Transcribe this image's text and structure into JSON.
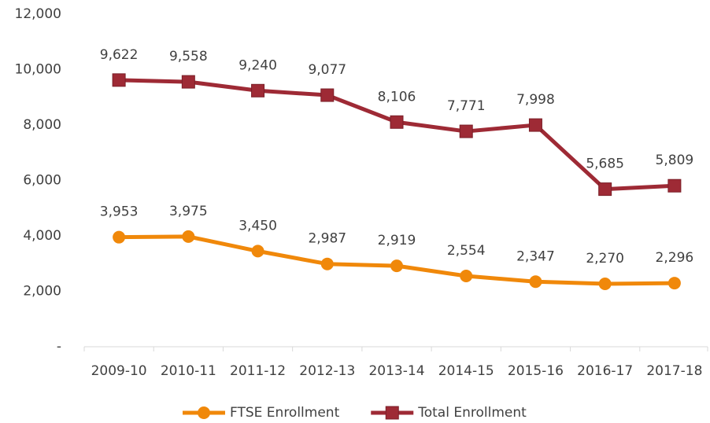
{
  "chart_data": {
    "type": "line",
    "categories": [
      "2009-10",
      "2010-11",
      "2011-12",
      "2012-13",
      "2013-14",
      "2014-15",
      "2015-16",
      "2016-17",
      "2017-18"
    ],
    "series": [
      {
        "name": "FTSE Enrollment",
        "color": "#f0880a",
        "marker": "circle",
        "values": [
          3953,
          3975,
          3450,
          2987,
          2919,
          2554,
          2347,
          2270,
          2296
        ],
        "value_labels": [
          "3,953",
          "3,975",
          "3,450",
          "2,987",
          "2,919",
          "2,554",
          "2,347",
          "2,270",
          "2,296"
        ]
      },
      {
        "name": "Total Enrollment",
        "color": "#9e2a35",
        "marker": "square",
        "values": [
          9622,
          9558,
          9240,
          9077,
          8106,
          7771,
          7998,
          5685,
          5809
        ],
        "value_labels": [
          "9,622",
          "9,558",
          "9,240",
          "9,077",
          "8,106",
          "7,771",
          "7,998",
          "5,685",
          "5,809"
        ]
      }
    ],
    "ylim": [
      0,
      12000
    ],
    "yticks": [
      {
        "value": 0,
        "label": "-"
      },
      {
        "value": 2000,
        "label": "2,000"
      },
      {
        "value": 4000,
        "label": "4,000"
      },
      {
        "value": 6000,
        "label": "6,000"
      },
      {
        "value": 8000,
        "label": "8,000"
      },
      {
        "value": 10000,
        "label": "10,000"
      },
      {
        "value": 12000,
        "label": "12,000"
      }
    ],
    "grid": false,
    "legend": "bottom"
  }
}
